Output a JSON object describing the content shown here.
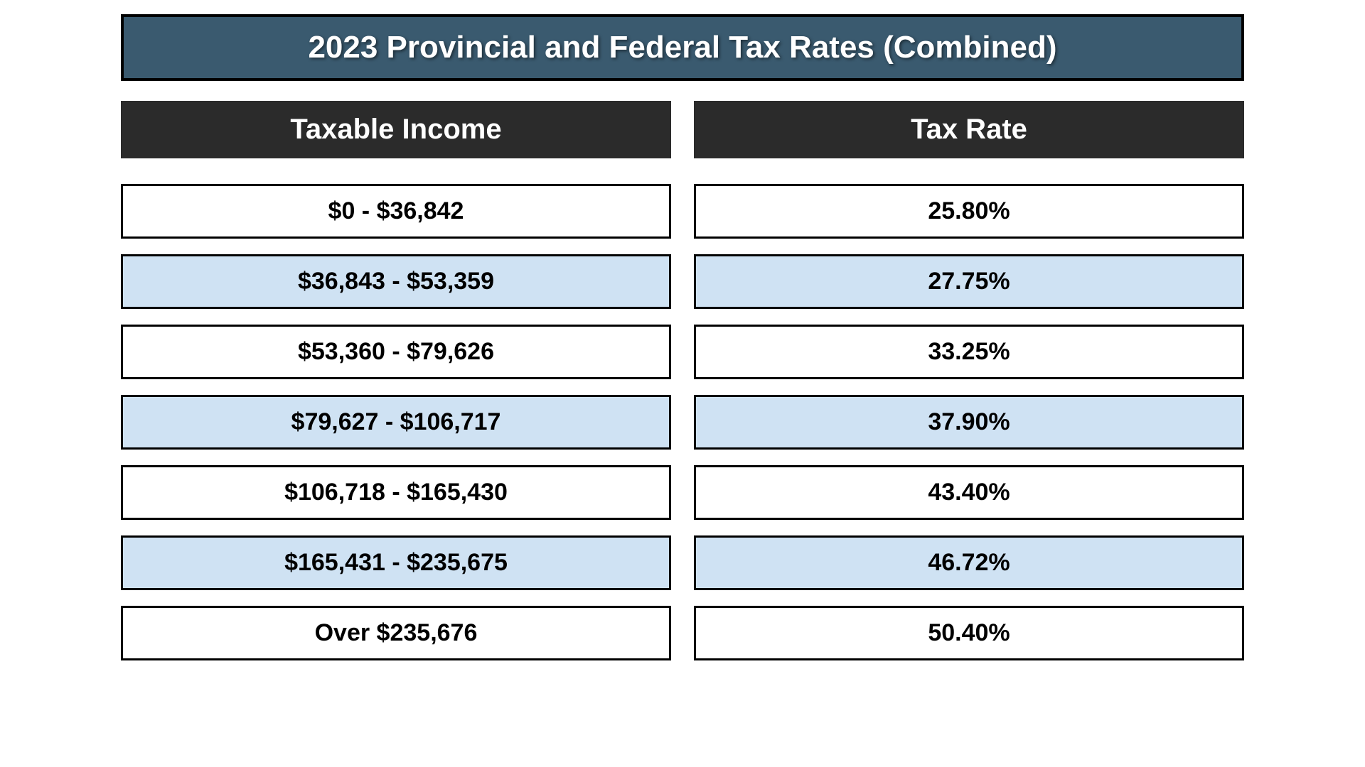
{
  "title": "2023 Provincial and Federal Tax Rates (Combined)",
  "columns": [
    "Taxable Income",
    "Tax Rate"
  ],
  "rows": [
    {
      "income": "$0 - $36,842",
      "rate": "25.80%",
      "bg": "#ffffff"
    },
    {
      "income": "$36,843 - $53,359",
      "rate": "27.75%",
      "bg": "#cfe2f3"
    },
    {
      "income": "$53,360 - $79,626",
      "rate": "33.25%",
      "bg": "#ffffff"
    },
    {
      "income": "$79,627 - $106,717",
      "rate": "37.90%",
      "bg": "#cfe2f3"
    },
    {
      "income": "$106,718 - $165,430",
      "rate": "43.40%",
      "bg": "#ffffff"
    },
    {
      "income": "$165,431 - $235,675",
      "rate": "46.72%",
      "bg": "#cfe2f3"
    },
    {
      "income": "Over $235,676",
      "rate": "50.40%",
      "bg": "#ffffff"
    }
  ],
  "style": {
    "title_bg": "#3a5a6f",
    "title_border": "#000000",
    "title_color": "#ffffff",
    "title_fontsize": 44,
    "header_bg": "#2b2b2b",
    "header_color": "#ffffff",
    "header_fontsize": 40,
    "cell_border": "#000000",
    "cell_fontsize": 34,
    "row_bg_default": "#ffffff",
    "row_bg_alt": "#cfe2f3",
    "column_gap": 32,
    "row_gap": 22
  }
}
